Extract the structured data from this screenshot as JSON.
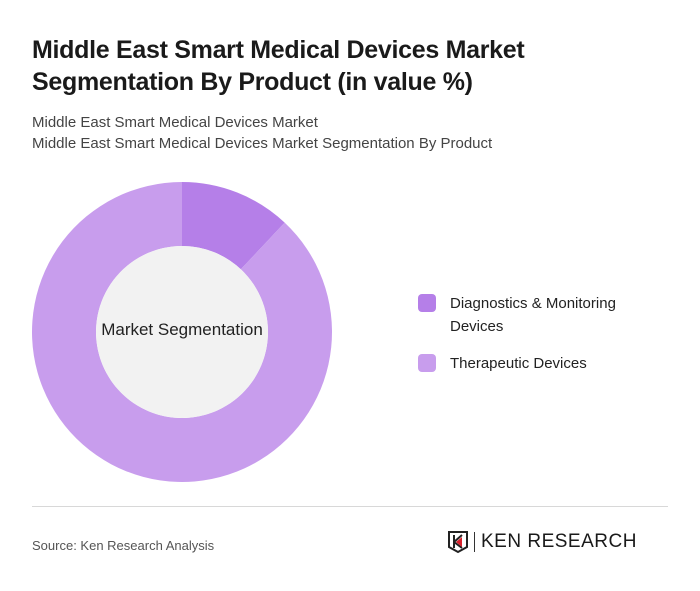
{
  "header": {
    "title": "Middle East Smart Medical Devices Market Segmentation By Product (in value %)",
    "subtitle1": "Middle East Smart Medical Devices Market",
    "subtitle2": "Middle East Smart Medical Devices Market Segmentation By Product"
  },
  "chart_data": {
    "type": "pie",
    "donut": true,
    "center_label": "Market Segmentation",
    "categories": [
      "Diagnostics & Monitoring Devices",
      "Therapeutic Devices"
    ],
    "values": [
      12,
      88
    ],
    "colors": [
      "#b57fe8",
      "#c89ded"
    ],
    "legend_position": "right"
  },
  "footer": {
    "source": "Source: Ken Research Analysis",
    "logo_text": "KEN RESEARCH"
  }
}
